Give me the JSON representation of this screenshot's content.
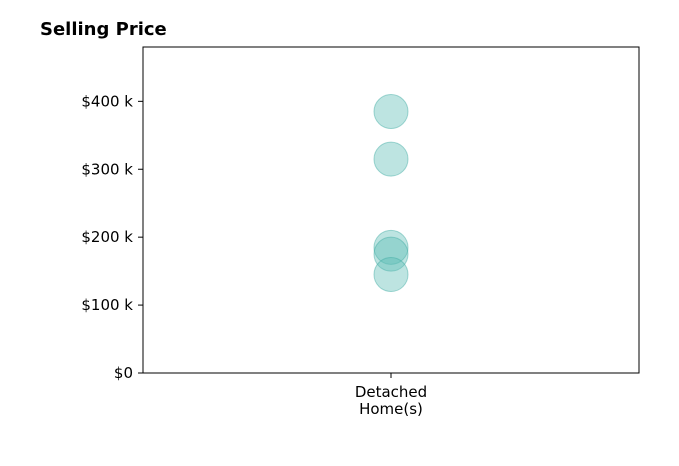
{
  "chart_data": {
    "type": "scatter",
    "title": "Selling Price",
    "xlabel": "",
    "ylabel": "",
    "categories": [
      "Detached\nHome(s)"
    ],
    "series": [
      {
        "category": "Detached\nHome(s)",
        "values": [
          385000,
          315000,
          185000,
          175000,
          145000
        ]
      }
    ],
    "ylim": [
      0,
      480000
    ],
    "yticks": [
      0,
      100000,
      200000,
      300000,
      400000
    ],
    "ytick_labels": [
      "$0",
      "$100 k",
      "$200 k",
      "$300 k",
      "$400 k"
    ],
    "grid": false,
    "legend": "none",
    "colors": {
      "point_fill": "#5bbcb4",
      "point_stroke": "#3aa99f",
      "axis": "#000000"
    }
  }
}
